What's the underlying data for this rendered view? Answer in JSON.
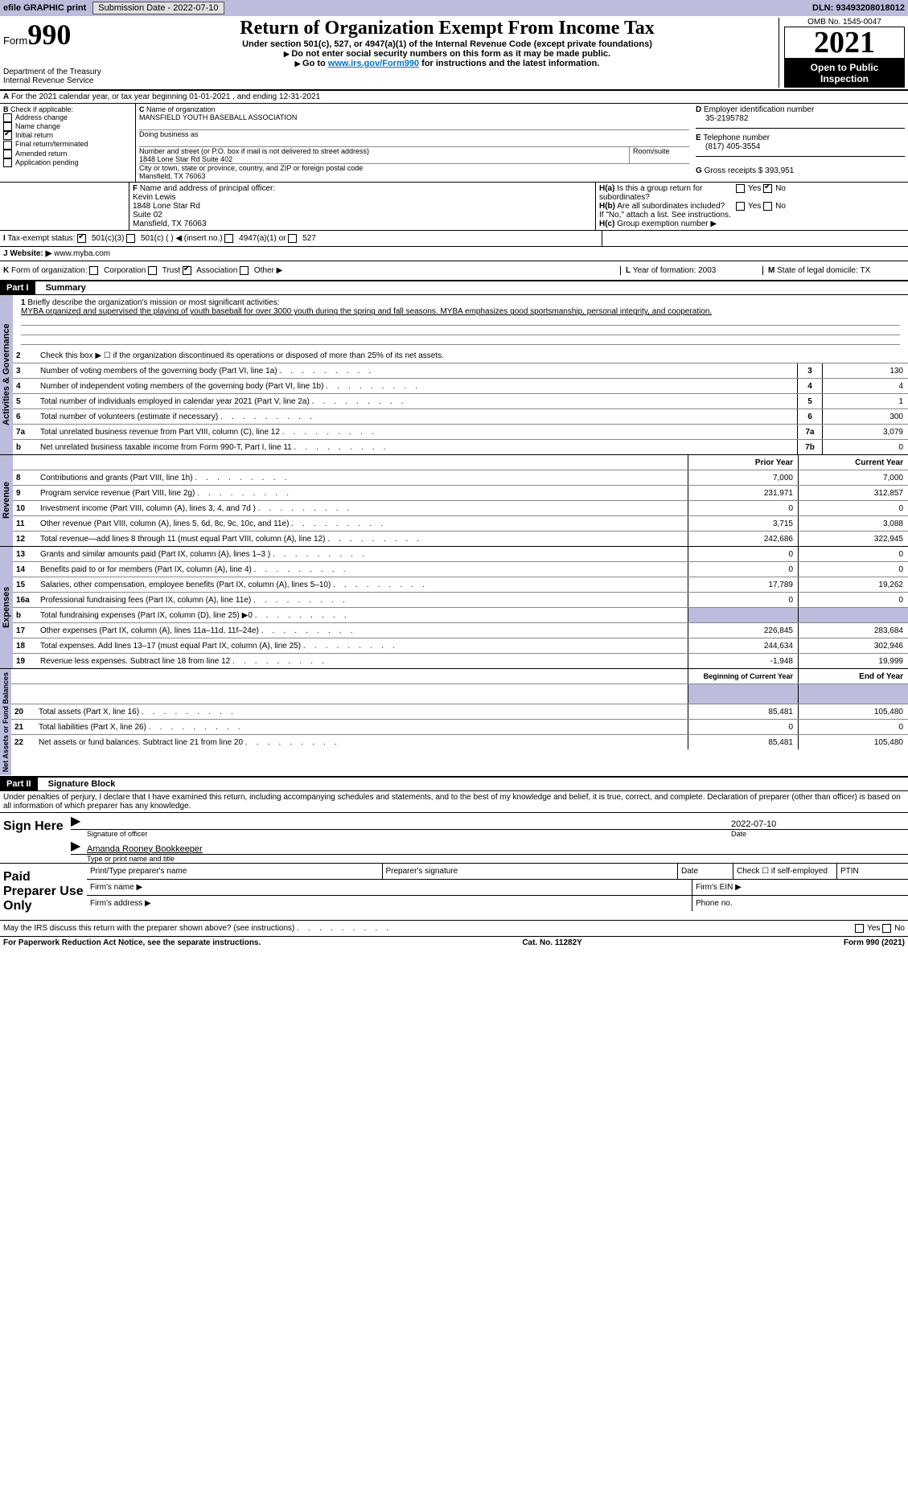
{
  "topbar": {
    "efile": "efile GRAPHIC print",
    "submission": "Submission Date - 2022-07-10",
    "dln": "DLN: 93493208018012"
  },
  "header": {
    "form_word": "Form",
    "form_no": "990",
    "title": "Return of Organization Exempt From Income Tax",
    "sub1": "Under section 501(c), 527, or 4947(a)(1) of the Internal Revenue Code (except private foundations)",
    "sub2": "Do not enter social security numbers on this form as it may be made public.",
    "sub3_pre": "Go to ",
    "sub3_link": "www.irs.gov/Form990",
    "sub3_post": " for instructions and the latest information.",
    "omb": "OMB No. 1545-0047",
    "year": "2021",
    "public": "Open to Public Inspection",
    "dept": "Department of the Treasury",
    "irs": "Internal Revenue Service"
  },
  "A": {
    "text": "For the 2021 calendar year, or tax year beginning 01-01-2021    , and ending 12-31-2021"
  },
  "B": {
    "label": "Check if applicable:",
    "opts": [
      "Address change",
      "Name change",
      "Initial return",
      "Final return/terminated",
      "Amended return",
      "Application pending"
    ],
    "checked_idx": 2
  },
  "C": {
    "name_lbl": "Name of organization",
    "name": "MANSFIELD YOUTH BASEBALL ASSOCIATION",
    "dba_lbl": "Doing business as",
    "street_lbl": "Number and street (or P.O. box if mail is not delivered to street address)",
    "room_lbl": "Room/suite",
    "street": "1848 Lone Star Rd Suite 402",
    "city_lbl": "City or town, state or province, country, and ZIP or foreign postal code",
    "city": "Mansfield, TX  76063"
  },
  "D": {
    "lbl": "Employer identification number",
    "val": "35-2195782"
  },
  "E": {
    "lbl": "Telephone number",
    "val": "(817) 405-3554"
  },
  "G": {
    "lbl": "Gross receipts $",
    "val": "393,951"
  },
  "F": {
    "lbl": "Name and address of principal officer:",
    "lines": [
      "Kevin Lewis",
      "1848 Lone Star Rd",
      "Suite 02",
      "Mansfield, TX  76063"
    ]
  },
  "H": {
    "a": "Is this a group return for subordinates?",
    "a_no": true,
    "b": "Are all subordinates included?",
    "bnote": "If \"No,\" attach a list. See instructions.",
    "c": "Group exemption number ▶"
  },
  "I": {
    "lbl": "Tax-exempt status:",
    "opts": [
      "501(c)(3)",
      "501(c) (  ) ◀ (insert no.)",
      "4947(a)(1) or",
      "527"
    ],
    "checked_idx": 0
  },
  "J": {
    "lbl": "Website: ▶",
    "val": "www.myba.com"
  },
  "K": {
    "lbl": "Form of organization:",
    "opts": [
      "Corporation",
      "Trust",
      "Association",
      "Other ▶"
    ],
    "checked_idx": 2
  },
  "L": {
    "lbl": "Year of formation:",
    "val": "2003"
  },
  "M": {
    "lbl": "State of legal domicile:",
    "val": "TX"
  },
  "part1": {
    "hdr": "Part I",
    "title": "Summary"
  },
  "gov": {
    "label": "Activities & Governance",
    "l1": "Briefly describe the organization's mission or most significant activities:",
    "l1txt": "MYBA organized and supervised the playing of youth baseball for over 3000 youth during the spring and fall seasons. MYBA emphasizes good sportsmanship, personal integrity, and cooperation.",
    "l2": "Check this box ▶ ☐  if the organization discontinued its operations or disposed of more than 25% of its net assets.",
    "rows": [
      {
        "no": "3",
        "txt": "Number of voting members of the governing body (Part VI, line 1a)",
        "box": "3",
        "val": "130"
      },
      {
        "no": "4",
        "txt": "Number of independent voting members of the governing body (Part VI, line 1b)",
        "box": "4",
        "val": "4"
      },
      {
        "no": "5",
        "txt": "Total number of individuals employed in calendar year 2021 (Part V, line 2a)",
        "box": "5",
        "val": "1"
      },
      {
        "no": "6",
        "txt": "Total number of volunteers (estimate if necessary)",
        "box": "6",
        "val": "300"
      },
      {
        "no": "7a",
        "txt": "Total unrelated business revenue from Part VIII, column (C), line 12",
        "box": "7a",
        "val": "3,079"
      },
      {
        "no": "b",
        "txt": "Net unrelated business taxable income from Form 990-T, Part I, line 11",
        "box": "7b",
        "val": "0"
      }
    ]
  },
  "rev": {
    "label": "Revenue",
    "prior": "Prior Year",
    "curr": "Current Year",
    "rows": [
      {
        "no": "8",
        "txt": "Contributions and grants (Part VIII, line 1h)",
        "p": "7,000",
        "c": "7,000"
      },
      {
        "no": "9",
        "txt": "Program service revenue (Part VIII, line 2g)",
        "p": "231,971",
        "c": "312,857"
      },
      {
        "no": "10",
        "txt": "Investment income (Part VIII, column (A), lines 3, 4, and 7d )",
        "p": "0",
        "c": "0"
      },
      {
        "no": "11",
        "txt": "Other revenue (Part VIII, column (A), lines 5, 6d, 8c, 9c, 10c, and 11e)",
        "p": "3,715",
        "c": "3,088"
      },
      {
        "no": "12",
        "txt": "Total revenue—add lines 8 through 11 (must equal Part VIII, column (A), line 12)",
        "p": "242,686",
        "c": "322,945"
      }
    ]
  },
  "exp": {
    "label": "Expenses",
    "rows": [
      {
        "no": "13",
        "txt": "Grants and similar amounts paid (Part IX, column (A), lines 1–3 )",
        "p": "0",
        "c": "0"
      },
      {
        "no": "14",
        "txt": "Benefits paid to or for members (Part IX, column (A), line 4)",
        "p": "0",
        "c": "0"
      },
      {
        "no": "15",
        "txt": "Salaries, other compensation, employee benefits (Part IX, column (A), lines 5–10)",
        "p": "17,789",
        "c": "19,262"
      },
      {
        "no": "16a",
        "txt": "Professional fundraising fees (Part IX, column (A), line 11e)",
        "p": "0",
        "c": "0"
      },
      {
        "no": "b",
        "txt": "Total fundraising expenses (Part IX, column (D), line 25) ▶0",
        "p": "",
        "c": "",
        "grey": true
      },
      {
        "no": "17",
        "txt": "Other expenses (Part IX, column (A), lines 11a–11d, 11f–24e)",
        "p": "226,845",
        "c": "283,684"
      },
      {
        "no": "18",
        "txt": "Total expenses. Add lines 13–17 (must equal Part IX, column (A), line 25)",
        "p": "244,634",
        "c": "302,946"
      },
      {
        "no": "19",
        "txt": "Revenue less expenses. Subtract line 18 from line 12",
        "p": "-1,948",
        "c": "19,999"
      }
    ]
  },
  "net": {
    "label": "Net Assets or Fund Balances",
    "prior": "Beginning of Current Year",
    "curr": "End of Year",
    "rows": [
      {
        "no": "20",
        "txt": "Total assets (Part X, line 16)",
        "p": "85,481",
        "c": "105,480"
      },
      {
        "no": "21",
        "txt": "Total liabilities (Part X, line 26)",
        "p": "0",
        "c": "0"
      },
      {
        "no": "22",
        "txt": "Net assets or fund balances. Subtract line 21 from line 20",
        "p": "85,481",
        "c": "105,480"
      }
    ]
  },
  "part2": {
    "hdr": "Part II",
    "title": "Signature Block",
    "decl": "Under penalties of perjury, I declare that I have examined this return, including accompanying schedules and statements, and to the best of my knowledge and belief, it is true, correct, and complete. Declaration of preparer (other than officer) is based on all information of which preparer has any knowledge."
  },
  "sign": {
    "here": "Sign Here",
    "sig_lbl": "Signature of officer",
    "date_lbl": "Date",
    "date": "2022-07-10",
    "name": "Amanda Rooney  Bookkeeper",
    "name_lbl": "Type or print name and title"
  },
  "paid": {
    "here": "Paid Preparer Use Only",
    "h1": "Print/Type preparer's name",
    "h2": "Preparer's signature",
    "h3": "Date",
    "h4": "Check ☐ if self-employed",
    "h5": "PTIN",
    "firm_name": "Firm's name  ▶",
    "firm_ein": "Firm's EIN ▶",
    "firm_addr": "Firm's address ▶",
    "phone": "Phone no."
  },
  "may": "May the IRS discuss this return with the preparer shown above? (see instructions)",
  "footer": {
    "left": "For Paperwork Reduction Act Notice, see the separate instructions.",
    "mid": "Cat. No. 11282Y",
    "right": "Form 990 (2021)"
  }
}
